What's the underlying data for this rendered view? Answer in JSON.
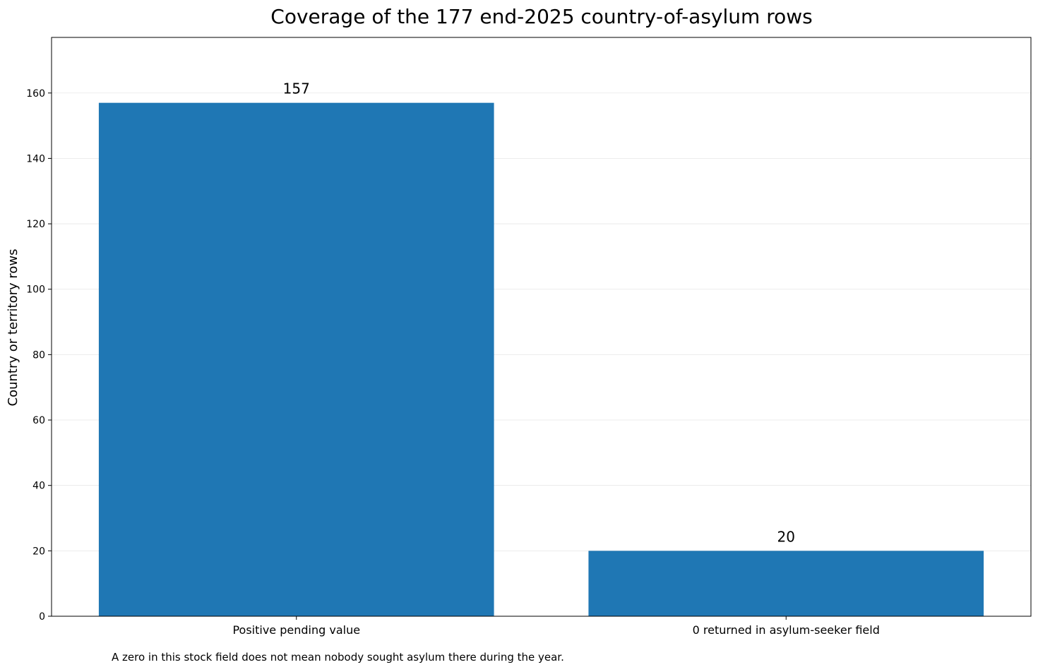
{
  "chart_data": {
    "type": "bar",
    "title": "Coverage of the 177 end-2025 country-of-asylum rows",
    "xlabel": "",
    "ylabel": "Country or territory rows",
    "categories": [
      "Positive pending value",
      "0 returned in asylum-seeker field"
    ],
    "values": [
      157,
      20
    ],
    "data_labels": [
      "157",
      "20"
    ],
    "ylim": [
      0,
      177
    ],
    "yticks": [
      0,
      20,
      40,
      60,
      80,
      100,
      120,
      140,
      160
    ],
    "grid": "horizontal",
    "bar_color": "#1f77b4",
    "footnote": "A zero in this stock field does not mean nobody sought asylum there during the year."
  }
}
